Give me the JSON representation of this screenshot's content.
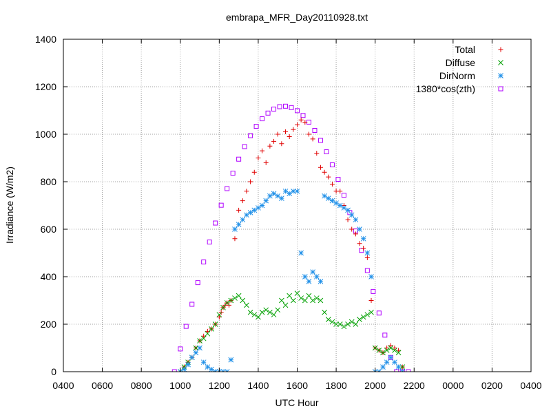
{
  "chart_data": {
    "type": "scatter",
    "title": "embrapa_MFR_Day20110928.txt",
    "xlabel": "UTC Hour",
    "ylabel": "Irradiance (W/m2)",
    "xlim": [
      4,
      28
    ],
    "ylim": [
      0,
      1400
    ],
    "x_ticks": [
      4,
      6,
      8,
      10,
      12,
      14,
      16,
      18,
      20,
      22,
      24,
      26,
      28
    ],
    "x_tick_labels": [
      "0400",
      "0600",
      "0800",
      "1000",
      "1200",
      "1400",
      "1600",
      "1800",
      "2000",
      "2200",
      "0000",
      "0200",
      "0400"
    ],
    "y_ticks": [
      0,
      200,
      400,
      600,
      800,
      1000,
      1200,
      1400
    ],
    "y_tick_labels": [
      "0",
      "200",
      "400",
      "600",
      "800",
      "1000",
      "1200",
      "1400"
    ],
    "grid": true,
    "legend_position": "top-right",
    "series": [
      {
        "name": "Total",
        "marker": "plus",
        "color": "#e00000",
        "x": [
          10.0,
          10.2,
          10.4,
          10.6,
          10.8,
          11.0,
          11.2,
          11.4,
          11.6,
          11.8,
          12.0,
          12.1,
          12.2,
          12.3,
          12.4,
          12.5,
          12.6,
          12.8,
          13.0,
          13.2,
          13.4,
          13.6,
          13.8,
          14.0,
          14.2,
          14.4,
          14.6,
          14.8,
          15.0,
          15.2,
          15.4,
          15.6,
          15.8,
          16.0,
          16.2,
          16.4,
          16.6,
          16.8,
          17.0,
          17.2,
          17.4,
          17.6,
          17.8,
          18.0,
          18.2,
          18.4,
          18.6,
          18.8,
          19.0,
          19.2,
          19.4,
          19.6,
          19.8,
          20.0,
          20.2,
          20.4,
          20.6,
          20.8,
          21.0,
          21.2,
          21.4
        ],
        "y": [
          0,
          20,
          40,
          60,
          100,
          130,
          150,
          170,
          180,
          200,
          230,
          250,
          270,
          280,
          290,
          280,
          300,
          560,
          680,
          720,
          760,
          800,
          840,
          900,
          930,
          880,
          950,
          970,
          1000,
          960,
          1010,
          990,
          1020,
          1040,
          1060,
          1050,
          1000,
          980,
          920,
          860,
          840,
          820,
          790,
          760,
          760,
          700,
          640,
          600,
          580,
          540,
          520,
          480,
          300,
          100,
          90,
          80,
          100,
          110,
          100,
          90,
          20
        ]
      },
      {
        "name": "Diffuse",
        "marker": "x",
        "color": "#00a000",
        "x": [
          10.0,
          10.2,
          10.4,
          10.6,
          10.8,
          11.0,
          11.2,
          11.4,
          11.6,
          11.8,
          12.0,
          12.2,
          12.4,
          12.6,
          12.8,
          13.0,
          13.2,
          13.4,
          13.6,
          13.8,
          14.0,
          14.2,
          14.4,
          14.6,
          14.8,
          15.0,
          15.2,
          15.4,
          15.6,
          15.8,
          16.0,
          16.2,
          16.4,
          16.6,
          16.8,
          17.0,
          17.2,
          17.4,
          17.6,
          17.8,
          18.0,
          18.2,
          18.4,
          18.6,
          18.8,
          19.0,
          19.2,
          19.4,
          19.6,
          19.8,
          20.0,
          20.2,
          20.4,
          20.6,
          20.8,
          21.0,
          21.2,
          21.4
        ],
        "y": [
          0,
          20,
          40,
          60,
          100,
          130,
          140,
          160,
          180,
          200,
          240,
          270,
          290,
          300,
          310,
          320,
          300,
          280,
          250,
          240,
          230,
          250,
          260,
          250,
          240,
          260,
          300,
          280,
          320,
          300,
          330,
          310,
          300,
          320,
          300,
          310,
          300,
          250,
          220,
          210,
          200,
          200,
          190,
          200,
          210,
          200,
          220,
          230,
          240,
          250,
          100,
          90,
          80,
          90,
          100,
          90,
          80,
          20
        ]
      },
      {
        "name": "DirNorm",
        "marker": "star",
        "color": "#2090e8",
        "x": [
          10.0,
          10.2,
          10.4,
          10.6,
          10.8,
          11.0,
          11.2,
          11.4,
          11.6,
          11.8,
          12.0,
          12.2,
          12.4,
          12.6,
          12.8,
          13.0,
          13.2,
          13.4,
          13.6,
          13.8,
          14.0,
          14.2,
          14.4,
          14.6,
          14.8,
          15.0,
          15.2,
          15.4,
          15.6,
          15.8,
          16.0,
          16.2,
          16.4,
          16.6,
          16.8,
          17.0,
          17.2,
          17.4,
          17.6,
          17.8,
          18.0,
          18.2,
          18.4,
          18.6,
          18.8,
          19.0,
          19.2,
          19.4,
          19.6,
          19.8,
          20.0,
          20.2,
          20.4,
          20.6,
          20.8,
          21.0,
          21.2,
          21.4
        ],
        "y": [
          0,
          10,
          30,
          60,
          80,
          100,
          40,
          20,
          10,
          0,
          0,
          0,
          0,
          50,
          600,
          620,
          640,
          660,
          670,
          680,
          690,
          700,
          720,
          740,
          750,
          740,
          730,
          760,
          750,
          760,
          760,
          500,
          400,
          380,
          420,
          400,
          380,
          740,
          730,
          720,
          710,
          700,
          690,
          680,
          660,
          640,
          600,
          560,
          500,
          400,
          0,
          0,
          20,
          40,
          60,
          40,
          20,
          0
        ]
      },
      {
        "name": "1380*cos(zth)",
        "marker": "square",
        "color": "#b000ff",
        "x": [
          9.7,
          10.0,
          10.3,
          10.6,
          10.9,
          11.2,
          11.5,
          11.8,
          12.1,
          12.4,
          12.7,
          13.0,
          13.3,
          13.6,
          13.9,
          14.2,
          14.5,
          14.8,
          15.1,
          15.4,
          15.7,
          16.0,
          16.3,
          16.6,
          16.9,
          17.2,
          17.5,
          17.8,
          18.1,
          18.4,
          18.7,
          19.0,
          19.3,
          19.6,
          19.9,
          20.2,
          20.5,
          20.8,
          21.1,
          21.4,
          21.7
        ],
        "y": [
          0,
          96,
          191,
          284,
          375,
          462,
          546,
          626,
          701,
          771,
          836,
          895,
          948,
          994,
          1033,
          1065,
          1089,
          1106,
          1116,
          1118,
          1112,
          1099,
          1079,
          1051,
          1016,
          974,
          926,
          871,
          810,
          743,
          670,
          593,
          511,
          426,
          338,
          247,
          154,
          60,
          0,
          0,
          0
        ]
      }
    ]
  }
}
